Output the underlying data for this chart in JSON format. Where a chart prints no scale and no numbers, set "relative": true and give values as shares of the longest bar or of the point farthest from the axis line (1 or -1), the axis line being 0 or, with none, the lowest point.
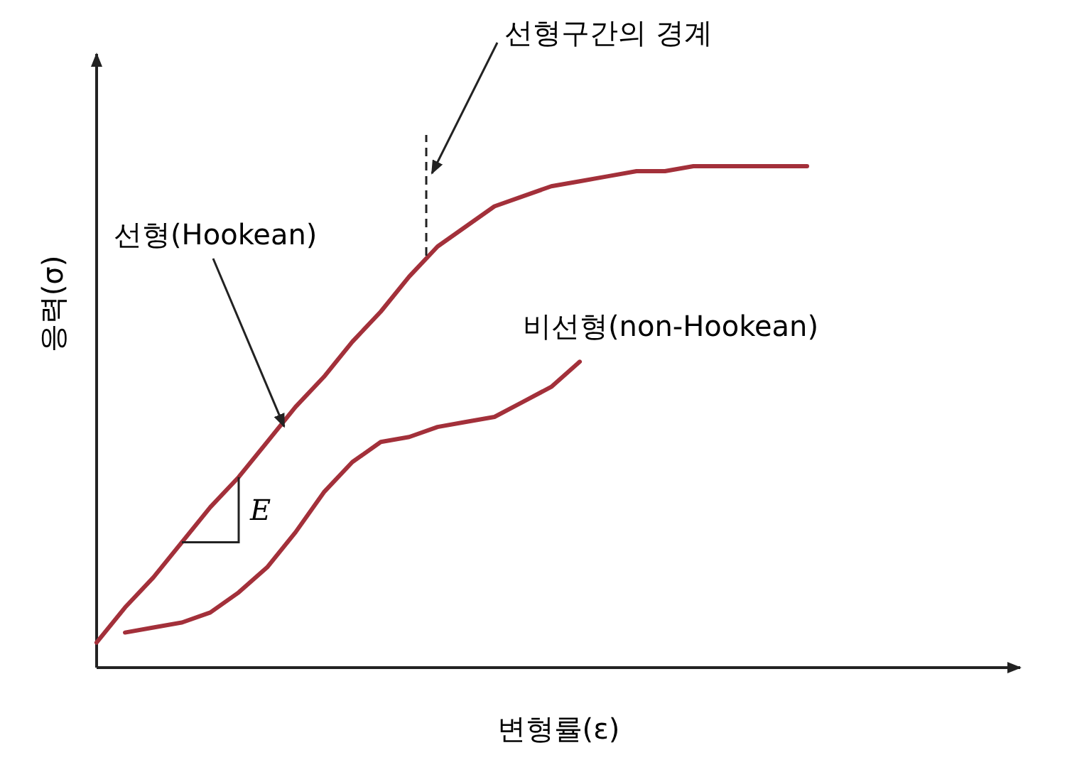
{
  "chart_data": {
    "type": "line",
    "relative": true,
    "xlabel": "변형률(ε)",
    "ylabel": "응력(σ)",
    "categories": [
      null,
      null,
      null,
      null,
      null,
      null,
      null,
      null,
      null,
      null,
      null,
      null,
      null,
      null,
      null,
      null,
      null,
      null,
      null,
      null,
      null,
      null,
      null,
      null,
      null,
      null
    ],
    "series": [
      {
        "color": "#a3303a",
        "values": [
          0.05,
          0.12,
          0.18,
          0.25,
          0.32,
          0.38,
          0.45,
          0.52,
          0.58,
          0.65,
          0.71,
          0.78,
          0.84,
          0.88,
          0.92,
          0.94,
          0.96,
          0.97,
          0.98,
          0.99,
          0.99,
          1,
          1,
          1,
          1,
          1
        ]
      },
      {
        "color": "#a3303a",
        "values": [
          null,
          0.07,
          0.08,
          0.09,
          0.11,
          0.15,
          0.2,
          0.27,
          0.35,
          0.41,
          0.45,
          0.46,
          0.48,
          0.49,
          0.5,
          0.53,
          0.56,
          0.61,
          null,
          null,
          null,
          null,
          null,
          null,
          null,
          null
        ]
      }
    ],
    "annotations": [
      "선형(Hookean)",
      "비선형(non-Hookean)",
      "선형구간의 경계",
      "E"
    ]
  }
}
